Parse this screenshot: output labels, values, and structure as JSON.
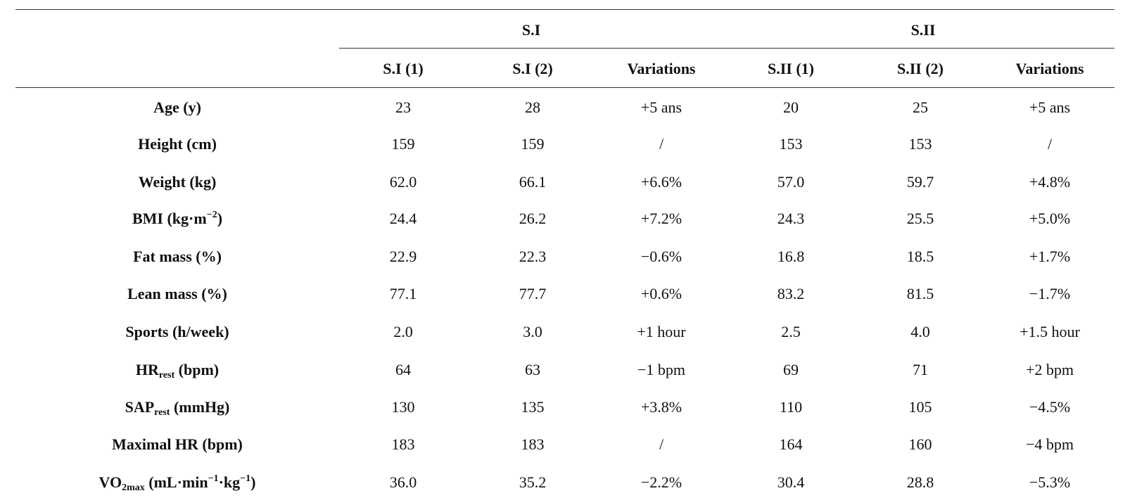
{
  "table": {
    "group_headers": [
      "S.I",
      "S.II"
    ],
    "column_headers": [
      "S.I (1)",
      "S.I (2)",
      "Variations",
      "S.II (1)",
      "S.II (2)",
      "Variations"
    ],
    "rows": [
      {
        "label": "Age (y)",
        "values": [
          "23",
          "28",
          "+5 ans",
          "20",
          "25",
          "+5 ans"
        ]
      },
      {
        "label": "Height (cm)",
        "values": [
          "159",
          "159",
          "/",
          "153",
          "153",
          "/"
        ]
      },
      {
        "label": "Weight (kg)",
        "values": [
          "62.0",
          "66.1",
          "+6.6%",
          "57.0",
          "59.7",
          "+4.8%"
        ]
      },
      {
        "label": {
          "pre": "BMI (kg·m",
          "sup": "−2",
          "post": ")"
        },
        "values": [
          "24.4",
          "26.2",
          "+7.2%",
          "24.3",
          "25.5",
          "+5.0%"
        ]
      },
      {
        "label": "Fat mass (%)",
        "values": [
          "22.9",
          "22.3",
          "−0.6%",
          "16.8",
          "18.5",
          "+1.7%"
        ]
      },
      {
        "label": "Lean mass (%)",
        "values": [
          "77.1",
          "77.7",
          "+0.6%",
          "83.2",
          "81.5",
          "−1.7%"
        ]
      },
      {
        "label": "Sports (h/week)",
        "values": [
          "2.0",
          "3.0",
          "+1 hour",
          "2.5",
          "4.0",
          "+1.5 hour"
        ]
      },
      {
        "label": {
          "pre": "HR",
          "sub": "rest",
          "post": " (bpm)"
        },
        "values": [
          "64",
          "63",
          "−1 bpm",
          "69",
          "71",
          "+2 bpm"
        ]
      },
      {
        "label": {
          "pre": "SAP",
          "sub": "rest",
          "post": " (mmHg)"
        },
        "values": [
          "130",
          "135",
          "+3.8%",
          "110",
          "105",
          "−4.5%"
        ]
      },
      {
        "label": "Maximal HR (bpm)",
        "values": [
          "183",
          "183",
          "/",
          "164",
          "160",
          "−4 bpm"
        ]
      },
      {
        "label": {
          "pre": "VO",
          "sub": "2max",
          "post": " (mL·min",
          "sup": "−1",
          "post2": "·kg",
          "sup2": "−1",
          "post3": ")"
        },
        "values": [
          "36.0",
          "35.2",
          "−2.2%",
          "30.4",
          "28.8",
          "−5.3%"
        ]
      }
    ]
  }
}
